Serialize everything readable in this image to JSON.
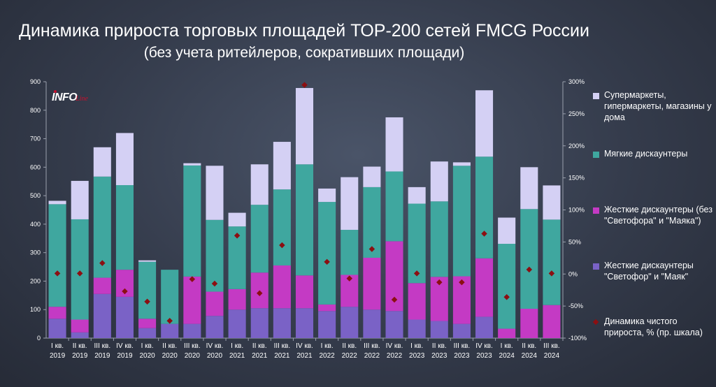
{
  "title": "Динамика прироста торговых площадей ТОР-200 сетей FMCG России",
  "subtitle": "(без учета ритейлеров, сокративших площади)",
  "logo": {
    "text": "INFO",
    "suffix": "Line"
  },
  "colors": {
    "hard_svetofor": "#7a62c6",
    "hard_other": "#c43ac4",
    "soft": "#3fa79f",
    "super": "#d4d0f4",
    "marker": "#8b0f12"
  },
  "chart_data": {
    "type": "bar",
    "stacked": true,
    "categories": [
      "I кв.\n2019",
      "II кв.\n2019",
      "III кв.\n2019",
      "IV кв.\n2019",
      "I кв.\n2020",
      "II кв.\n2020",
      "III кв.\n2020",
      "IV кв.\n2020",
      "I кв.\n2021",
      "II кв.\n2021",
      "III кв.\n2021",
      "IV кв.\n2021",
      "I кв.\n2022",
      "II кв.\n2022",
      "III кв.\n2022",
      "IV кв.\n2022",
      "I кв.\n2023",
      "II кв.\n2023",
      "III кв.\n2023",
      "IV кв.\n2023",
      "I кв.\n2024",
      "II кв.\n2024",
      "III кв.\n2024"
    ],
    "series": [
      {
        "name": "Жесткие дискаунтеры \"Светофор\" и \"Маяк\"",
        "color_key": "hard_svetofor",
        "values": [
          68,
          20,
          155,
          145,
          35,
          50,
          50,
          78,
          100,
          105,
          105,
          105,
          95,
          110,
          100,
          95,
          65,
          60,
          50,
          75,
          0,
          0,
          0
        ]
      },
      {
        "name": "Жесткие дискаунтеры (без \"Светофора\" и \"Маяка\")",
        "color_key": "hard_other",
        "values": [
          42,
          45,
          57,
          95,
          33,
          0,
          166,
          85,
          72,
          125,
          150,
          115,
          23,
          112,
          182,
          245,
          128,
          155,
          167,
          205,
          33,
          103,
          116
        ]
      },
      {
        "name": "Мягкие дискаунтеры",
        "color_key": "soft",
        "values": [
          360,
          352,
          355,
          297,
          200,
          190,
          390,
          252,
          220,
          238,
          267,
          390,
          360,
          158,
          248,
          245,
          279,
          265,
          388,
          357,
          298,
          350,
          300
        ]
      },
      {
        "name": "Супермаркеты, гипермаркеты, магазины у дома",
        "color_key": "super",
        "values": [
          12,
          135,
          103,
          183,
          5,
          0,
          8,
          190,
          48,
          142,
          167,
          268,
          47,
          185,
          72,
          190,
          58,
          140,
          12,
          233,
          92,
          147,
          120
        ]
      }
    ],
    "line_series": {
      "name": "Динамика чистого прироста, % (пр. шкала)",
      "axis": "right",
      "values": [
        1,
        1,
        17,
        -27,
        -43,
        -73,
        -8,
        -15,
        60,
        -30,
        45,
        295,
        19,
        -7,
        39,
        -40,
        1,
        -13,
        -13,
        63,
        -36,
        7,
        1
      ]
    },
    "y_left": {
      "min": 0,
      "max": 900,
      "ticks": [
        0,
        100,
        200,
        300,
        400,
        500,
        600,
        700,
        800,
        900
      ]
    },
    "y_right": {
      "min": -100,
      "max": 300,
      "ticks": [
        "-100%",
        "-50%",
        "0%",
        "50%",
        "100%",
        "150%",
        "200%",
        "250%",
        "300%"
      ]
    },
    "legend_position": "right"
  },
  "legend": [
    {
      "label": "Супермаркеты, гипермаркеты, магазины у дома",
      "color_key": "super",
      "type": "swatch"
    },
    {
      "label": "Мягкие дискаунтеры",
      "color_key": "soft",
      "type": "swatch"
    },
    {
      "label": "Жесткие дискаунтеры (без \"Светофора\" и \"Маяка\")",
      "color_key": "hard_other",
      "type": "swatch"
    },
    {
      "label": "Жесткие дискаунтеры \"Светофор\" и \"Маяк\"",
      "color_key": "hard_svetofor",
      "type": "swatch"
    },
    {
      "label": "Динамика чистого прироста, % (пр. шкала)",
      "color_key": "marker",
      "type": "diamond"
    }
  ]
}
